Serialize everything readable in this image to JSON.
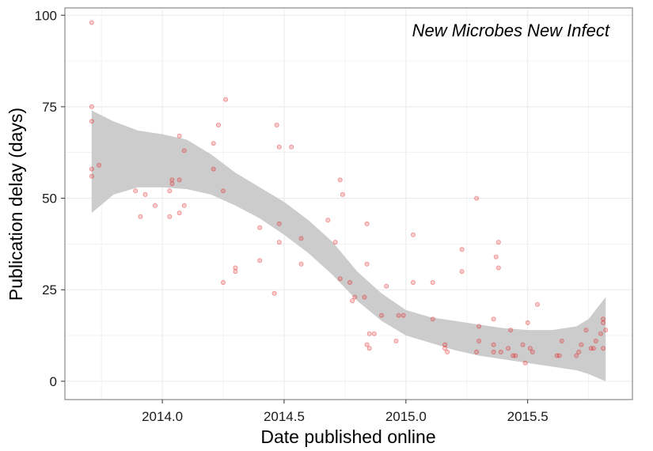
{
  "chart_data": {
    "type": "scatter",
    "annotation": "New Microbes New Infect",
    "xlabel": "Date published online",
    "ylabel": "Publication delay (days)",
    "xlim": [
      2013.6,
      2015.93
    ],
    "ylim": [
      -5,
      102
    ],
    "x_ticks": [
      2014.0,
      2014.5,
      2015.0,
      2015.5
    ],
    "x_tick_labels": [
      "2014.0",
      "2014.5",
      "2015.0",
      "2015.5"
    ],
    "y_ticks": [
      0,
      25,
      50,
      75,
      100
    ],
    "y_tick_labels": [
      "0",
      "25",
      "50",
      "75",
      "100"
    ],
    "grid": true,
    "colors": {
      "point": "#e41a1c",
      "ribbon": "#cccccc",
      "grid": "#ebebeb",
      "panel_border": "#888888"
    },
    "points": [
      [
        2013.71,
        98
      ],
      [
        2013.71,
        75
      ],
      [
        2013.71,
        71
      ],
      [
        2013.71,
        58
      ],
      [
        2013.71,
        56
      ],
      [
        2013.74,
        59
      ],
      [
        2013.89,
        52
      ],
      [
        2013.91,
        45
      ],
      [
        2013.93,
        51
      ],
      [
        2013.97,
        48
      ],
      [
        2014.03,
        45
      ],
      [
        2014.03,
        52
      ],
      [
        2014.04,
        54
      ],
      [
        2014.04,
        55
      ],
      [
        2014.07,
        55
      ],
      [
        2014.07,
        46
      ],
      [
        2014.07,
        67
      ],
      [
        2014.09,
        48
      ],
      [
        2014.09,
        63
      ],
      [
        2014.21,
        58
      ],
      [
        2014.21,
        65
      ],
      [
        2014.23,
        70
      ],
      [
        2014.25,
        52
      ],
      [
        2014.25,
        27
      ],
      [
        2014.26,
        77
      ],
      [
        2014.3,
        30
      ],
      [
        2014.3,
        31
      ],
      [
        2014.4,
        42
      ],
      [
        2014.4,
        33
      ],
      [
        2014.46,
        24
      ],
      [
        2014.47,
        70
      ],
      [
        2014.48,
        64
      ],
      [
        2014.48,
        43
      ],
      [
        2014.48,
        38
      ],
      [
        2014.53,
        64
      ],
      [
        2014.57,
        32
      ],
      [
        2014.57,
        39
      ],
      [
        2014.68,
        44
      ],
      [
        2014.71,
        38
      ],
      [
        2014.73,
        55
      ],
      [
        2014.73,
        28
      ],
      [
        2014.74,
        51
      ],
      [
        2014.77,
        27
      ],
      [
        2014.78,
        22
      ],
      [
        2014.79,
        23
      ],
      [
        2014.83,
        23
      ],
      [
        2014.84,
        43
      ],
      [
        2014.84,
        32
      ],
      [
        2014.84,
        10
      ],
      [
        2014.85,
        9
      ],
      [
        2014.85,
        13
      ],
      [
        2014.87,
        13
      ],
      [
        2014.9,
        18
      ],
      [
        2014.92,
        26
      ],
      [
        2014.96,
        11
      ],
      [
        2014.97,
        18
      ],
      [
        2014.99,
        18
      ],
      [
        2015.03,
        40
      ],
      [
        2015.03,
        27
      ],
      [
        2015.11,
        27
      ],
      [
        2015.11,
        17
      ],
      [
        2015.16,
        10
      ],
      [
        2015.16,
        9
      ],
      [
        2015.17,
        8
      ],
      [
        2015.23,
        36
      ],
      [
        2015.23,
        30
      ],
      [
        2015.29,
        50
      ],
      [
        2015.29,
        8
      ],
      [
        2015.3,
        11
      ],
      [
        2015.3,
        15
      ],
      [
        2015.36,
        17
      ],
      [
        2015.36,
        10
      ],
      [
        2015.36,
        8
      ],
      [
        2015.37,
        34
      ],
      [
        2015.38,
        38
      ],
      [
        2015.38,
        31
      ],
      [
        2015.39,
        8
      ],
      [
        2015.42,
        9
      ],
      [
        2015.43,
        14
      ],
      [
        2015.44,
        7
      ],
      [
        2015.45,
        7
      ],
      [
        2015.48,
        10
      ],
      [
        2015.49,
        5
      ],
      [
        2015.5,
        16
      ],
      [
        2015.51,
        9
      ],
      [
        2015.52,
        8
      ],
      [
        2015.54,
        21
      ],
      [
        2015.62,
        7
      ],
      [
        2015.63,
        7
      ],
      [
        2015.64,
        11
      ],
      [
        2015.7,
        7
      ],
      [
        2015.71,
        8
      ],
      [
        2015.72,
        10
      ],
      [
        2015.74,
        14
      ],
      [
        2015.76,
        9
      ],
      [
        2015.77,
        9
      ],
      [
        2015.78,
        11
      ],
      [
        2015.8,
        13
      ],
      [
        2015.81,
        17
      ],
      [
        2015.81,
        16
      ],
      [
        2015.81,
        9
      ],
      [
        2015.82,
        14
      ]
    ],
    "ribbon": {
      "x": [
        2013.71,
        2013.8,
        2013.9,
        2014.0,
        2014.1,
        2014.2,
        2014.3,
        2014.4,
        2014.5,
        2014.6,
        2014.7,
        2014.8,
        2014.9,
        2015.0,
        2015.1,
        2015.2,
        2015.3,
        2015.4,
        2015.5,
        2015.6,
        2015.7,
        2015.75,
        2015.82
      ],
      "upper": [
        74,
        71,
        68.5,
        67.5,
        66,
        62,
        57,
        53,
        49,
        44,
        38,
        30,
        24,
        19.5,
        17.5,
        16.5,
        15.5,
        14.5,
        14,
        14,
        15,
        17,
        23
      ],
      "lower": [
        46,
        51,
        53,
        53,
        52.5,
        51,
        48,
        44.5,
        40,
        35,
        29,
        22,
        16.5,
        12.5,
        10.5,
        8.5,
        7,
        6,
        5,
        4,
        3,
        2,
        0
      ]
    }
  }
}
